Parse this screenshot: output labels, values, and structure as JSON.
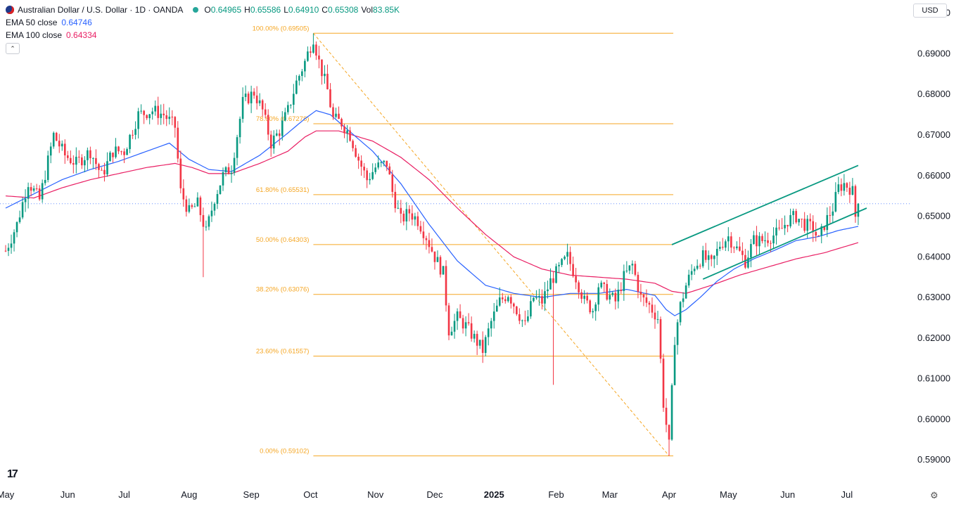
{
  "legend": {
    "symbol": "Australian Dollar / U.S. Dollar · 1D · OANDA",
    "o_label": "O",
    "o_value": "0.64965",
    "h_label": "H",
    "h_value": "0.65586",
    "l_label": "L",
    "l_value": "0.64910",
    "c_label": "C",
    "c_value": "0.65308",
    "vol_label": "Vol",
    "vol_value": "83.85K",
    "ema50_label": "EMA 50 close",
    "ema50_value": "0.64746",
    "ema100_label": "EMA 100 close",
    "ema100_value": "0.64334",
    "collapse_icon": "chevron-up-icon"
  },
  "currency": "USD",
  "logo_text": "17",
  "settings_icon": "gear-icon",
  "colors": {
    "up": "#089981",
    "down": "#f23645",
    "ema50": "#2962ff",
    "ema100": "#e91e63",
    "fib": "#f5a623",
    "channel": "#089981",
    "grid_text": "#131722"
  },
  "chart_data": {
    "type": "candlestick",
    "y_axis": {
      "ticks": [
        "0.70000",
        "0.69000",
        "0.68000",
        "0.67000",
        "0.66000",
        "0.65000",
        "0.64000",
        "0.63000",
        "0.62000",
        "0.61000",
        "0.60000",
        "0.59000"
      ],
      "range": [
        0.589,
        0.7015
      ],
      "scale": "linear",
      "position": "right"
    },
    "x_axis": {
      "months": [
        {
          "label": "May",
          "day": 0,
          "bold": false
        },
        {
          "label": "Jun",
          "day": 22,
          "bold": false
        },
        {
          "label": "Jul",
          "day": 42,
          "bold": false
        },
        {
          "label": "Aug",
          "day": 65,
          "bold": false
        },
        {
          "label": "Sep",
          "day": 87,
          "bold": false
        },
        {
          "label": "Oct",
          "day": 108,
          "bold": false
        },
        {
          "label": "Nov",
          "day": 131,
          "bold": false
        },
        {
          "label": "Dec",
          "day": 152,
          "bold": false
        },
        {
          "label": "2025",
          "day": 173,
          "bold": true
        },
        {
          "label": "Feb",
          "day": 195,
          "bold": false
        },
        {
          "label": "Mar",
          "day": 214,
          "bold": false
        },
        {
          "label": "Apr",
          "day": 235,
          "bold": false
        },
        {
          "label": "May",
          "day": 256,
          "bold": false
        },
        {
          "label": "Jun",
          "day": 277,
          "bold": false
        },
        {
          "label": "Jul",
          "day": 298,
          "bold": false
        }
      ]
    },
    "key_points": [
      [
        0,
        0.6415
      ],
      [
        4,
        0.648
      ],
      [
        8,
        0.6585
      ],
      [
        12,
        0.654
      ],
      [
        17,
        0.67
      ],
      [
        21,
        0.665
      ],
      [
        25,
        0.663
      ],
      [
        30,
        0.666
      ],
      [
        34,
        0.66
      ],
      [
        38,
        0.666
      ],
      [
        42,
        0.666
      ],
      [
        47,
        0.675
      ],
      [
        52,
        0.676
      ],
      [
        56,
        0.675
      ],
      [
        60,
        0.672
      ],
      [
        62,
        0.656
      ],
      [
        65,
        0.651
      ],
      [
        68,
        0.653
      ],
      [
        71,
        0.646
      ],
      [
        74,
        0.6545
      ],
      [
        77,
        0.66
      ],
      [
        80,
        0.662
      ],
      [
        84,
        0.678
      ],
      [
        88,
        0.6805
      ],
      [
        91,
        0.676
      ],
      [
        94,
        0.668
      ],
      [
        97,
        0.671
      ],
      [
        100,
        0.676
      ],
      [
        103,
        0.683
      ],
      [
        106,
        0.688
      ],
      [
        108,
        0.692
      ],
      [
        109,
        0.694
      ],
      [
        111,
        0.688
      ],
      [
        114,
        0.681
      ],
      [
        116,
        0.674
      ],
      [
        119,
        0.673
      ],
      [
        122,
        0.67
      ],
      [
        125,
        0.664
      ],
      [
        128,
        0.659
      ],
      [
        131,
        0.662
      ],
      [
        135,
        0.663
      ],
      [
        137,
        0.656
      ],
      [
        140,
        0.649
      ],
      [
        143,
        0.651
      ],
      [
        146,
        0.649
      ],
      [
        149,
        0.645
      ],
      [
        152,
        0.64
      ],
      [
        155,
        0.636
      ],
      [
        157,
        0.622
      ],
      [
        160,
        0.625
      ],
      [
        163,
        0.623
      ],
      [
        166,
        0.62
      ],
      [
        169,
        0.617
      ],
      [
        172,
        0.624
      ],
      [
        175,
        0.629
      ],
      [
        178,
        0.631
      ],
      [
        181,
        0.627
      ],
      [
        184,
        0.623
      ],
      [
        187,
        0.63
      ],
      [
        190,
        0.629
      ],
      [
        193,
        0.634
      ],
      [
        196,
        0.637
      ],
      [
        199,
        0.64
      ],
      [
        202,
        0.635
      ],
      [
        205,
        0.629
      ],
      [
        208,
        0.627
      ],
      [
        210,
        0.633
      ],
      [
        213,
        0.631
      ],
      [
        216,
        0.629
      ],
      [
        219,
        0.635
      ],
      [
        222,
        0.638
      ],
      [
        225,
        0.63
      ],
      [
        228,
        0.628
      ],
      [
        231,
        0.625
      ],
      [
        233,
        0.604
      ],
      [
        235,
        0.5935
      ],
      [
        237,
        0.62
      ],
      [
        239,
        0.628
      ],
      [
        241,
        0.633
      ],
      [
        244,
        0.638
      ],
      [
        247,
        0.64
      ],
      [
        250,
        0.638
      ],
      [
        253,
        0.643
      ],
      [
        256,
        0.645
      ],
      [
        259,
        0.642
      ],
      [
        262,
        0.639
      ],
      [
        265,
        0.644
      ],
      [
        268,
        0.644
      ],
      [
        271,
        0.645
      ],
      [
        274,
        0.646
      ],
      [
        277,
        0.649
      ],
      [
        280,
        0.65
      ],
      [
        283,
        0.648
      ],
      [
        286,
        0.647
      ],
      [
        288,
        0.644
      ],
      [
        290,
        0.648
      ],
      [
        293,
        0.652
      ],
      [
        295,
        0.657
      ],
      [
        297,
        0.658
      ],
      [
        299,
        0.657
      ],
      [
        300,
        0.656
      ],
      [
        301,
        0.65
      ],
      [
        302,
        0.6531
      ]
    ],
    "last_close": 0.65308,
    "ema50_key_points": [
      [
        0,
        0.652
      ],
      [
        10,
        0.6555
      ],
      [
        20,
        0.659
      ],
      [
        30,
        0.6615
      ],
      [
        40,
        0.6635
      ],
      [
        50,
        0.666
      ],
      [
        58,
        0.668
      ],
      [
        65,
        0.664
      ],
      [
        72,
        0.6615
      ],
      [
        80,
        0.661
      ],
      [
        90,
        0.665
      ],
      [
        100,
        0.6705
      ],
      [
        106,
        0.674
      ],
      [
        110,
        0.676
      ],
      [
        115,
        0.675
      ],
      [
        120,
        0.672
      ],
      [
        130,
        0.666
      ],
      [
        140,
        0.658
      ],
      [
        150,
        0.648
      ],
      [
        160,
        0.639
      ],
      [
        170,
        0.633
      ],
      [
        180,
        0.631
      ],
      [
        190,
        0.63
      ],
      [
        200,
        0.631
      ],
      [
        210,
        0.631
      ],
      [
        220,
        0.632
      ],
      [
        230,
        0.6305
      ],
      [
        234,
        0.627
      ],
      [
        237,
        0.6255
      ],
      [
        241,
        0.627
      ],
      [
        246,
        0.63
      ],
      [
        252,
        0.634
      ],
      [
        258,
        0.637
      ],
      [
        265,
        0.6395
      ],
      [
        272,
        0.6415
      ],
      [
        280,
        0.644
      ],
      [
        288,
        0.645
      ],
      [
        295,
        0.6465
      ],
      [
        302,
        0.6475
      ]
    ],
    "ema100_key_points": [
      [
        0,
        0.655
      ],
      [
        10,
        0.6545
      ],
      [
        20,
        0.657
      ],
      [
        30,
        0.659
      ],
      [
        40,
        0.6605
      ],
      [
        50,
        0.662
      ],
      [
        60,
        0.663
      ],
      [
        66,
        0.662
      ],
      [
        72,
        0.6605
      ],
      [
        80,
        0.6605
      ],
      [
        90,
        0.663
      ],
      [
        100,
        0.666
      ],
      [
        106,
        0.6695
      ],
      [
        110,
        0.671
      ],
      [
        118,
        0.671
      ],
      [
        130,
        0.6685
      ],
      [
        140,
        0.6645
      ],
      [
        150,
        0.659
      ],
      [
        160,
        0.652
      ],
      [
        170,
        0.6455
      ],
      [
        180,
        0.64
      ],
      [
        190,
        0.637
      ],
      [
        200,
        0.6355
      ],
      [
        210,
        0.635
      ],
      [
        220,
        0.6345
      ],
      [
        230,
        0.6335
      ],
      [
        236,
        0.6315
      ],
      [
        241,
        0.631
      ],
      [
        250,
        0.633
      ],
      [
        260,
        0.6355
      ],
      [
        270,
        0.6375
      ],
      [
        280,
        0.6395
      ],
      [
        290,
        0.641
      ],
      [
        302,
        0.6435
      ]
    ],
    "fibonacci": {
      "start_day": 109,
      "end_day": 235,
      "right_day": 235,
      "levels": [
        {
          "label": "100.00% (0.69505)",
          "value": 0.69505
        },
        {
          "label": "78.60% (0.67278)",
          "value": 0.67278
        },
        {
          "label": "61.80% (0.65531)",
          "value": 0.65531
        },
        {
          "label": "50.00% (0.64303)",
          "value": 0.64303
        },
        {
          "label": "38.20% (0.63076)",
          "value": 0.63076
        },
        {
          "label": "23.60% (0.61557)",
          "value": 0.61557
        },
        {
          "label": "0.00% (0.59102)",
          "value": 0.59102
        }
      ],
      "diagonal": [
        [
          109,
          0.69505
        ],
        [
          235,
          0.59102
        ]
      ]
    },
    "channel": {
      "upper": [
        [
          236,
          0.643
        ],
        [
          302,
          0.6625
        ]
      ],
      "lower": [
        [
          247,
          0.6345
        ],
        [
          305,
          0.652
        ]
      ]
    }
  }
}
